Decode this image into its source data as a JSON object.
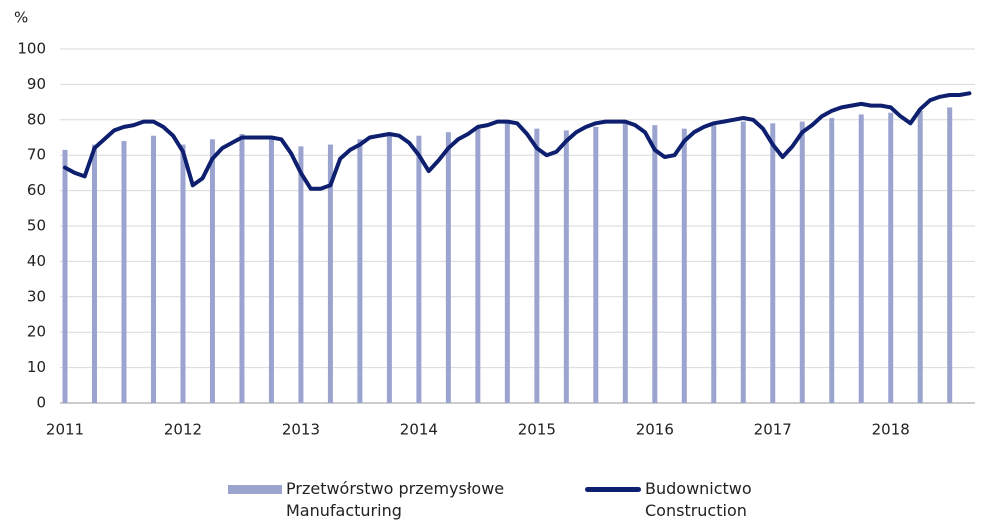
{
  "chart_data": {
    "type": "bar_line",
    "y_unit": "%",
    "ylim": [
      0,
      100
    ],
    "yticks": [
      0,
      10,
      20,
      30,
      40,
      50,
      60,
      70,
      80,
      90,
      100
    ],
    "grid": true,
    "categories": [
      "2011",
      null,
      null,
      null,
      null,
      null,
      null,
      null,
      null,
      null,
      null,
      null,
      "2012",
      null,
      null,
      null,
      null,
      null,
      null,
      null,
      null,
      null,
      null,
      null,
      "2013",
      null,
      null,
      null,
      null,
      null,
      null,
      null,
      null,
      null,
      null,
      null,
      "2014",
      null,
      null,
      null,
      null,
      null,
      null,
      null,
      null,
      null,
      null,
      null,
      "2015",
      null,
      null,
      null,
      null,
      null,
      null,
      null,
      null,
      null,
      null,
      null,
      "2016",
      null,
      null,
      null,
      null,
      null,
      null,
      null,
      null,
      null,
      null,
      null,
      "2017",
      null,
      null,
      null,
      null,
      null,
      null,
      null,
      null,
      null,
      null,
      null,
      "2018",
      null,
      null,
      null,
      null,
      null,
      null,
      null,
      null
    ],
    "series": [
      {
        "name": "Przetwórstwo przemysłowe\nManufacturing",
        "type": "bar",
        "color": "#9ba4cf",
        "values": [
          71.5,
          null,
          null,
          73,
          null,
          null,
          74,
          null,
          null,
          75.5,
          null,
          null,
          73,
          null,
          null,
          74.5,
          null,
          null,
          76,
          null,
          null,
          75.5,
          null,
          null,
          72.5,
          null,
          null,
          73,
          null,
          null,
          74.5,
          null,
          null,
          75.5,
          null,
          null,
          75.5,
          null,
          null,
          76.5,
          null,
          null,
          77.5,
          null,
          null,
          79,
          null,
          null,
          77.5,
          null,
          null,
          77,
          null,
          null,
          78,
          null,
          null,
          79,
          null,
          null,
          78.5,
          null,
          null,
          77.5,
          null,
          null,
          78.5,
          null,
          null,
          79.5,
          null,
          null,
          79,
          null,
          null,
          79.5,
          null,
          null,
          80.5,
          null,
          null,
          81.5,
          null,
          null,
          82,
          null,
          null,
          82.5,
          null,
          null,
          83.5,
          null,
          null
        ]
      },
      {
        "name": "Budownictwo\nConstruction",
        "type": "line",
        "color": "#0d1f6e",
        "values": [
          66.5,
          65,
          64,
          72,
          74.5,
          77,
          78,
          78.5,
          79.5,
          79.5,
          78,
          75.5,
          71,
          61.5,
          63.5,
          69,
          72,
          73.5,
          75,
          75,
          75,
          75,
          74.5,
          70.5,
          65,
          60.5,
          60.5,
          61.5,
          69,
          71.5,
          73,
          75,
          75.5,
          76,
          75.5,
          73.5,
          70,
          65.5,
          68.5,
          72,
          74.5,
          76,
          78,
          78.5,
          79.5,
          79.5,
          79,
          76,
          72,
          70,
          71,
          74,
          76.5,
          78,
          79,
          79.5,
          79.5,
          79.5,
          78.5,
          76.5,
          71.5,
          69.5,
          70,
          74,
          76.5,
          78,
          79,
          79.5,
          80,
          80.5,
          80,
          77.5,
          73,
          69.5,
          72.5,
          76.5,
          78.5,
          81,
          82.5,
          83.5,
          84,
          84.5,
          84,
          84,
          83.5,
          81,
          79,
          83,
          85.5,
          86.5,
          87,
          87,
          87.5
        ]
      }
    ]
  }
}
